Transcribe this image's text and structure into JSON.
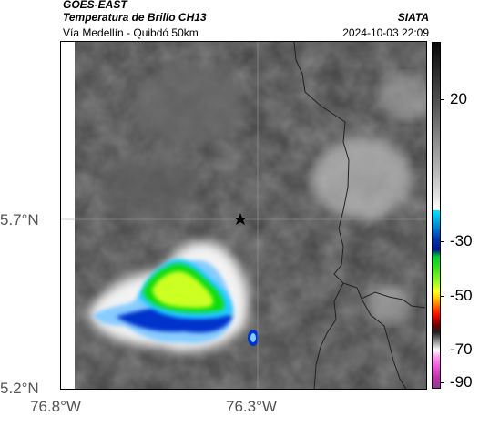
{
  "header": {
    "satellite": "GOES-EAST",
    "product": "Temperatura de Brillo CH13",
    "organization": "SIATA",
    "route": "Vía Medellín - Quibdó 50km",
    "datetime": "2024-10-03 22:09"
  },
  "map": {
    "lat_labels": [
      "5.7°N",
      "5.2°N"
    ],
    "lon_labels": [
      "76.8°W",
      "76.3°W"
    ],
    "marker_icon": "star-icon"
  },
  "colorbar": {
    "labels": [
      "20",
      "-30",
      "-50",
      "-70",
      "-90"
    ]
  },
  "colors": {
    "cloud_cold": "#11dd11",
    "cloud_core": "#ccff22",
    "cloud_edge": "#0033cc",
    "cloud_ice": "#88ccff"
  }
}
